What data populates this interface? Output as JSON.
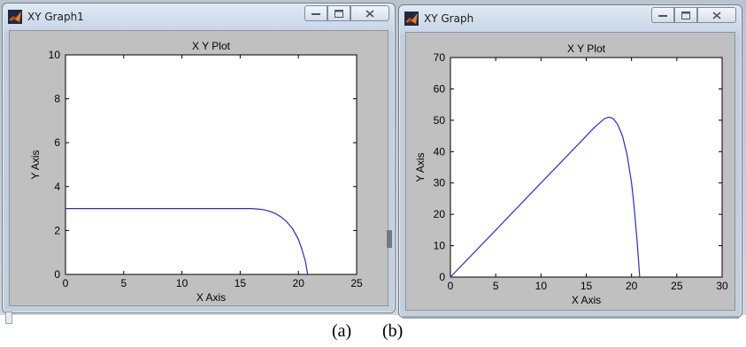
{
  "windows": [
    {
      "title": "XY Graph1",
      "chart_data": {
        "type": "line",
        "title": "X Y Plot",
        "xlabel": "X Axis",
        "ylabel": "Y Axis",
        "xlim": [
          0,
          25
        ],
        "ylim": [
          0,
          10
        ],
        "xticks": [
          0,
          5,
          10,
          15,
          20,
          25
        ],
        "yticks": [
          0,
          2,
          4,
          6,
          8,
          10
        ],
        "grid": false,
        "line_color": "#2b2bd9",
        "series": [
          {
            "x": [
              0,
              5,
              10,
              15,
              16,
              16.5,
              17,
              17.5,
              18,
              18.5,
              19,
              19.5,
              20,
              20.3,
              20.6,
              20.8
            ],
            "y": [
              3,
              3,
              3,
              3,
              3.0,
              2.98,
              2.95,
              2.88,
              2.78,
              2.62,
              2.4,
              2.08,
              1.6,
              1.15,
              0.6,
              0
            ]
          }
        ]
      }
    },
    {
      "title": "XY Graph",
      "chart_data": {
        "type": "line",
        "title": "X Y Plot",
        "xlabel": "X Axis",
        "ylabel": "Y Axis",
        "xlim": [
          0,
          30
        ],
        "ylim": [
          0,
          70
        ],
        "xticks": [
          0,
          5,
          10,
          15,
          20,
          25,
          30
        ],
        "yticks": [
          0,
          10,
          20,
          30,
          40,
          50,
          60,
          70
        ],
        "grid": false,
        "line_color": "#2b2bd9",
        "series": [
          {
            "x": [
              0,
              5,
              10,
              15,
              16,
              17,
              17.5,
              18,
              18.5,
              19,
              19.5,
              20,
              20.3,
              20.6,
              20.9
            ],
            "y": [
              0,
              15,
              30,
              45,
              48,
              50.5,
              51,
              50.5,
              48.5,
              45,
              39,
              30,
              22,
              12,
              0
            ]
          }
        ]
      }
    }
  ],
  "captions": {
    "a": "(a)",
    "b": "(b)"
  },
  "colors": {
    "frame": "#c3cfdb",
    "client_bg": "#c0c0c0",
    "plot_bg": "#ffffff"
  }
}
